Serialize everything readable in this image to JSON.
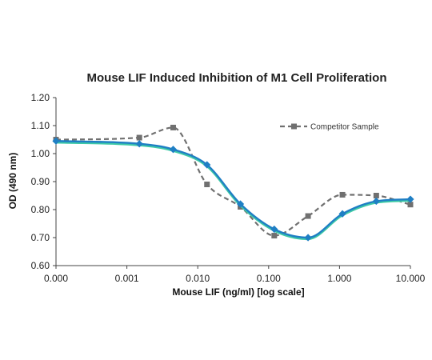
{
  "chart_data": {
    "type": "line",
    "title": "Mouse LIF Induced Inhibition of M1 Cell Proliferation",
    "xlabel": "Mouse LIF (ng/ml) [log scale]",
    "ylabel": "OD (490 nm)",
    "x_scale": "log",
    "x_tick_labels": [
      "0.000",
      "0.001",
      "0.010",
      "0.100",
      "1.000",
      "10.000"
    ],
    "y_tick_labels": [
      "0.60",
      "0.70",
      "0.80",
      "0.90",
      "1.00",
      "1.10",
      "1.20"
    ],
    "ylim": [
      0.6,
      1.2
    ],
    "grid": false,
    "legend_position": "top-right",
    "series": [
      {
        "name": "",
        "color": "#1f7fc4",
        "fit_color": "#3ec9a7",
        "marker": "diamond",
        "line_style": "smooth-solid",
        "x": [
          0.0001,
          0.0015,
          0.0045,
          0.0135,
          0.04,
          0.12,
          0.36,
          1.1,
          3.3,
          10
        ],
        "values": [
          1.045,
          1.035,
          1.015,
          0.96,
          0.82,
          0.73,
          0.7,
          0.785,
          0.83,
          0.837
        ]
      },
      {
        "name": "Competitor Sample",
        "color": "#707070",
        "marker": "square",
        "line_style": "dashed",
        "x": [
          0.0001,
          0.0015,
          0.0045,
          0.0135,
          0.04,
          0.12,
          0.36,
          1.1,
          3.3,
          10
        ],
        "values": [
          1.05,
          1.057,
          1.093,
          0.89,
          0.81,
          0.707,
          0.777,
          0.853,
          0.85,
          0.818
        ]
      }
    ]
  }
}
